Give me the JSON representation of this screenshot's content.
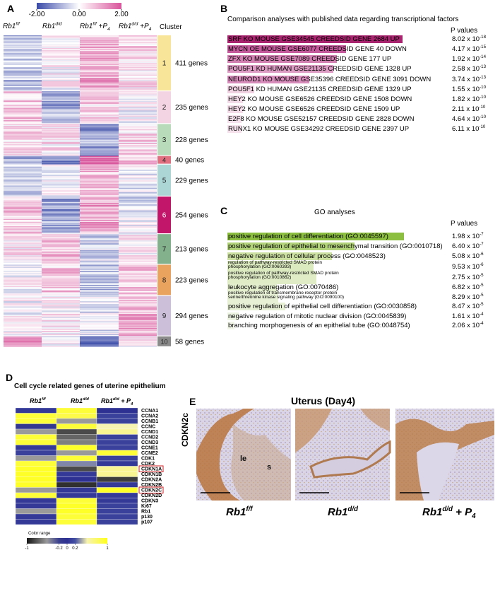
{
  "panel_a": {
    "label": "A",
    "colorbar": {
      "range": [
        -2,
        2
      ],
      "colors": [
        "#3b4ba8",
        "#ffffff",
        "#d8549b"
      ],
      "ticks": [
        {
          "value": -2,
          "label": "-2.00"
        },
        {
          "value": 0,
          "label": "0.00"
        },
        {
          "value": 2,
          "label": "2.00"
        }
      ]
    },
    "columns": [
      [
        {
          "text": "Rb1"
        },
        {
          "sup": "f/f"
        }
      ],
      [
        {
          "text": "Rb1"
        },
        {
          "sup": "d/d"
        }
      ],
      [
        {
          "text": "Rb1"
        },
        {
          "sup": "f/f"
        },
        {
          "text": " +P"
        },
        {
          "sub": "4"
        }
      ],
      [
        {
          "text": "Rb1"
        },
        {
          "sup": "d/d"
        },
        {
          "text": " +P"
        },
        {
          "sub": "4"
        }
      ]
    ],
    "cluster_header": "Cluster",
    "clusters": [
      {
        "id": "1",
        "genes": "411 genes",
        "color": "#f8e59a",
        "levels": [
          -0.6,
          0.1,
          0.9,
          0.3
        ]
      },
      {
        "id": "2",
        "genes": "235 genes",
        "color": "#f3d4e3",
        "levels": [
          0.6,
          -0.8,
          0.4,
          0.0
        ]
      },
      {
        "id": "3",
        "genes": "228 genes",
        "color": "#b8dcb9",
        "levels": [
          0.5,
          0.3,
          -1.0,
          0.5
        ]
      },
      {
        "id": "4",
        "genes": "40 genes",
        "color": "#e07080",
        "levels": [
          -1.0,
          -1.5,
          1.5,
          0.8
        ]
      },
      {
        "id": "5",
        "genes": "229 genes",
        "color": "#acd5d6",
        "levels": [
          -0.5,
          0.0,
          0.7,
          -0.2
        ]
      },
      {
        "id": "6",
        "genes": "254 genes",
        "color": "#c2166b",
        "levels": [
          0.6,
          -1.0,
          1.0,
          -0.3
        ]
      },
      {
        "id": "7",
        "genes": "213 genes",
        "color": "#82b18c",
        "levels": [
          0.3,
          0.8,
          -0.4,
          0.2
        ]
      },
      {
        "id": "8",
        "genes": "223 genes",
        "color": "#e9a35e",
        "levels": [
          0.1,
          0.6,
          -0.6,
          0.6
        ]
      },
      {
        "id": "9",
        "genes": "294 genes",
        "color": "#cbbfda",
        "levels": [
          0.0,
          0.2,
          -0.3,
          0.9
        ]
      },
      {
        "id": "10",
        "genes": "58 genes",
        "color": "#8a8a8a",
        "levels": [
          1.2,
          0.0,
          -1.5,
          0.3
        ]
      }
    ]
  },
  "panel_b": {
    "label": "B",
    "title": "Comparison analyses with published data regarding transcriptional factors",
    "p_header": "P values",
    "rows": [
      {
        "term": "SRF KO MOUSE GSE34545 CREEDSID GENE 2684 UP",
        "p": {
          "coef": "8.02 x 10",
          "exp": "-18"
        },
        "highlight": "#a8246e"
      },
      {
        "term": "MYCN OE MOUSE GSE6077 CREEDSID GENE 40 DOWN",
        "p": {
          "coef": "4.17 x 10",
          "exp": "-15"
        },
        "highlight": "#c45a9b"
      },
      {
        "term": "ZFX KO MOUSE GSE7089 CREEDSID GENE 177 UP",
        "p": {
          "coef": "1.92 x 10",
          "exp": "-14"
        },
        "highlight": "#d27fb2"
      },
      {
        "term": "POU5F1 KD HUMAN GSE21135 CREEDSID GENE 1328 UP",
        "p": {
          "coef": "2.58 x 10",
          "exp": "-13"
        },
        "highlight": "#dd9cc4"
      },
      {
        "term": "NEUROD1 KO MOUSE GSE35396 CREEDSID GENE 3091 DOWN",
        "p": {
          "coef": "3.74 x 10",
          "exp": "-13"
        },
        "highlight": "#d88cbc"
      },
      {
        "term": "POU5F1 KD HUMAN GSE21135 CREEDSID GENE 1329 UP",
        "p": {
          "coef": "1.55 x 10",
          "exp": "-10"
        },
        "highlight": "#f0d2e3"
      },
      {
        "term": "HEY2 KO MOUSE GSE6526 CREEDSID GENE 1508 DOWN",
        "p": {
          "coef": "1.82 x 10",
          "exp": "-10"
        },
        "highlight": "#f3dbe8"
      },
      {
        "term": "HEY2 KO MOUSE GSE6526 CREEDSID GENE 1509 UP",
        "p": {
          "coef": "2.11 x 10",
          "exp": "-10"
        },
        "highlight": "#f3dbe8"
      },
      {
        "term": "E2F8 KO MOUSE GSE52157 CREEDSID GENE 2828 DOWN",
        "p": {
          "coef": "4.64 x 10",
          "exp": "-10"
        },
        "highlight": "#f5e1ec"
      },
      {
        "term": "RUNX1 KO MOUSE GSE34292 CREEDSID GENE 2397 UP",
        "p": {
          "coef": "6.11 x 10",
          "exp": "-10"
        },
        "highlight": "#f5e1ec"
      }
    ]
  },
  "panel_c": {
    "label": "C",
    "title": "GO analyses",
    "p_header": "P values",
    "rows": [
      {
        "term": "positive regulation of cell differentiation (GO:0045597)",
        "p": {
          "coef": "1.98 x 10",
          "exp": "-7"
        },
        "highlight": "#8cbe3f",
        "small": false
      },
      {
        "term": "positive regulation of epithelial to mesenchymal transition (GO:0010718)",
        "p": {
          "coef": "6.40 x 10",
          "exp": "-7"
        },
        "highlight": "#b3d37a",
        "small": false
      },
      {
        "term": "negative regulation of cellular process (GO:0048523)",
        "p": {
          "coef": "5.08 x 10",
          "exp": "-6"
        },
        "highlight": "#cde2a2",
        "small": false
      },
      {
        "term": "regulation of pathway-restricted SMAD protein phosphorylation (GO:0060393)",
        "p": {
          "coef": "9.53 x 10",
          "exp": "-6"
        },
        "highlight": "#dbeabf",
        "small": true
      },
      {
        "term": "positive regulation of pathway-restricted SMAD protein phosphorylation (GO:0010862)",
        "p": {
          "coef": "2.75 x 10",
          "exp": "-5"
        },
        "highlight": "#dfecc6",
        "small": true
      },
      {
        "term": "leukocyte aggregation (GO:0070486)",
        "p": {
          "coef": "6.82 x 10",
          "exp": "-5"
        },
        "highlight": "#e3eecd",
        "small": false
      },
      {
        "term": "positive regulation of transmembrane receptor protein serine/threonine kinase signaling pathway (GO:0090100)",
        "p": {
          "coef": "8.29 x 10",
          "exp": "-5"
        },
        "highlight": "#e7f0d5",
        "small": true
      },
      {
        "term": "positive regulation of epithelial cell differentiation (GO:0030858)",
        "p": {
          "coef": "8.47 x 10",
          "exp": "-5"
        },
        "highlight": "#e7f0d5",
        "small": false
      },
      {
        "term": "negative regulation of mitotic nuclear division (GO:0045839)",
        "p": {
          "coef": "1.61 x 10",
          "exp": "-4"
        },
        "highlight": "#edf4e2",
        "small": false
      },
      {
        "term": "branching morphogenesis of an epithelial tube (GO:0048754)",
        "p": {
          "coef": "2.06 x 10",
          "exp": "-4"
        },
        "highlight": "#f1f6e8",
        "small": false
      }
    ]
  },
  "panel_d": {
    "label": "D",
    "title": "Cell cycle related genes of uterine epithelium",
    "columns": [
      [
        {
          "text": "Rb1"
        },
        {
          "sup": "f/f"
        }
      ],
      [
        {
          "text": "Rb1"
        },
        {
          "sup": "d/d"
        }
      ],
      [
        {
          "text": "Rb1"
        },
        {
          "sup": "d/d"
        },
        {
          "text": " + P"
        },
        {
          "sub": "4"
        }
      ]
    ],
    "genes": [
      "CCNA1",
      "CCNA2",
      "CCNB1",
      "CCNC",
      "CCND1",
      "CCND2",
      "CCND3",
      "CCNE1",
      "CCNE2",
      "CDK1",
      "CDK2",
      "CDKN1A",
      "CDKN1B",
      "CDKN2A",
      "CDKN2B",
      "CDKN2C",
      "CDKN2D",
      "CDKN3",
      "Ki67",
      "Rb1",
      "p130",
      "p107"
    ],
    "values": [
      [
        0.05,
        0.9,
        0.0
      ],
      [
        0.9,
        0.85,
        0.1
      ],
      [
        0.9,
        -0.5,
        0.1
      ],
      [
        -0.1,
        0.9,
        0.5
      ],
      [
        -0.5,
        -0.8,
        0.6
      ],
      [
        0.9,
        -0.7,
        0.1
      ],
      [
        0.9,
        -0.6,
        0.1
      ],
      [
        0.05,
        0.95,
        0.1
      ],
      [
        0.1,
        -0.5,
        0.9
      ],
      [
        -0.5,
        0.9,
        0.1
      ],
      [
        0.9,
        0.3,
        0.05
      ],
      [
        0.95,
        -0.8,
        0.6
      ],
      [
        0.95,
        0.05,
        0.6
      ],
      [
        0.95,
        0.0,
        -0.85
      ],
      [
        0.95,
        -0.9,
        0.05
      ],
      [
        -0.5,
        0.05,
        0.95
      ],
      [
        0.9,
        0.05,
        0.05
      ],
      [
        0.05,
        0.9,
        0.05
      ],
      [
        0.05,
        0.95,
        0.1
      ],
      [
        -0.5,
        0.95,
        0.1
      ],
      [
        0.05,
        0.9,
        0.1
      ],
      [
        0.05,
        0.9,
        0.1
      ]
    ],
    "boxed_rows": [
      11,
      15
    ],
    "legend": {
      "title": "Color range",
      "range": [
        -1,
        1
      ],
      "ticks": [
        -1,
        -0.2,
        0,
        0.2,
        1
      ],
      "stops": [
        {
          "value": -1,
          "color": "#151515"
        },
        {
          "value": -0.5,
          "color": "#9a9a9a"
        },
        {
          "value": -0.2,
          "color": "#3a3f8f"
        },
        {
          "value": 0,
          "color": "#2e3192"
        },
        {
          "value": 0.2,
          "color": "#4450a4"
        },
        {
          "value": 0.5,
          "color": "#f7f3b0"
        },
        {
          "value": 1,
          "color": "#ffff1a"
        }
      ]
    }
  },
  "panel_e": {
    "label": "E",
    "title": "Uterus (Day4)",
    "y_label": "CDKN2c",
    "annotations": [
      "le",
      "s"
    ],
    "images": [
      [
        {
          "text": "Rb1"
        },
        {
          "sup": "f/f"
        }
      ],
      [
        {
          "text": "Rb1"
        },
        {
          "sup": "d/d"
        }
      ],
      [
        {
          "text": "Rb1"
        },
        {
          "sup": "d/d"
        },
        {
          "text": " + P"
        },
        {
          "sub": "4"
        }
      ]
    ]
  }
}
